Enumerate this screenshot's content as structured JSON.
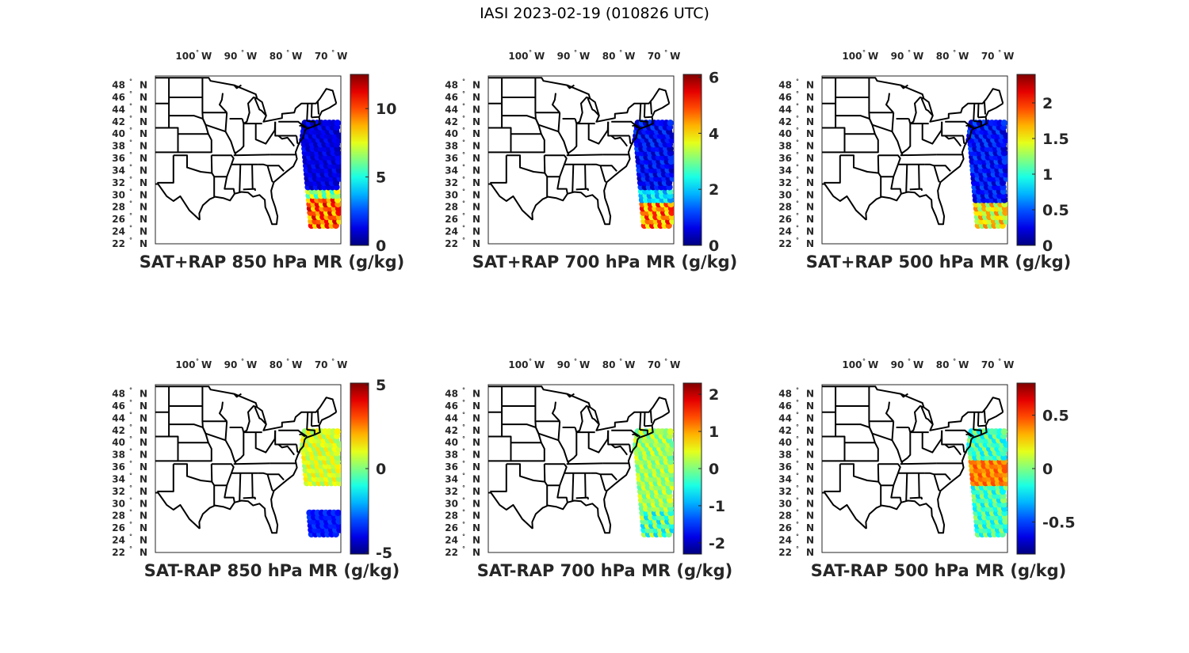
{
  "figure_title": "IASI 2023-02-19 (010826 UTC)",
  "lon_labels": [
    "100",
    "90",
    "80",
    "70"
  ],
  "lon_hemisphere": "W",
  "lat_labels": [
    "48",
    "46",
    "44",
    "42",
    "40",
    "38",
    "36",
    "34",
    "32",
    "30",
    "28",
    "26",
    "24",
    "22"
  ],
  "lat_hemisphere": "N",
  "degree_symbol": "°",
  "colormap": "jet",
  "panels": [
    {
      "id": "sat-rap-sum-850",
      "title": "SAT+RAP 850 hPa MR (g/kg)",
      "clim": [
        0,
        12.5
      ],
      "ticks": [
        "0",
        "5",
        "10"
      ],
      "tick_values": [
        0,
        5,
        10
      ],
      "field": "sum850"
    },
    {
      "id": "sat-rap-sum-700",
      "title": "SAT+RAP 700 hPa MR (g/kg)",
      "clim": [
        0,
        6.1
      ],
      "ticks": [
        "0",
        "2",
        "4",
        "6"
      ],
      "tick_values": [
        0,
        2,
        4,
        6
      ],
      "field": "sum700"
    },
    {
      "id": "sat-rap-sum-500",
      "title": "SAT+RAP 500 hPa MR (g/kg)",
      "clim": [
        0,
        2.4
      ],
      "ticks": [
        "0",
        "0.5",
        "1",
        "1.5",
        "2"
      ],
      "tick_values": [
        0,
        0.5,
        1,
        1.5,
        2
      ],
      "field": "sum500"
    },
    {
      "id": "sat-rap-diff-850",
      "title": "SAT-RAP 850 hPa MR (g/kg)",
      "clim": [
        -5.1,
        5.1
      ],
      "ticks": [
        "-5",
        "0",
        "5"
      ],
      "tick_values": [
        -5,
        0,
        5
      ],
      "field": "diff850"
    },
    {
      "id": "sat-rap-diff-700",
      "title": "SAT-RAP 700 hPa MR (g/kg)",
      "clim": [
        -2.3,
        2.3
      ],
      "ticks": [
        "-2",
        "-1",
        "0",
        "1",
        "2"
      ],
      "tick_values": [
        -2,
        -1,
        0,
        1,
        2
      ],
      "field": "diff700"
    },
    {
      "id": "sat-rap-diff-500",
      "title": "SAT-RAP 500 hPa MR (g/kg)",
      "clim": [
        -0.8,
        0.8
      ],
      "ticks": [
        "-0.5",
        "0",
        "0.5"
      ],
      "tick_values": [
        -0.5,
        0,
        0.5
      ],
      "field": "diff500"
    }
  ]
}
